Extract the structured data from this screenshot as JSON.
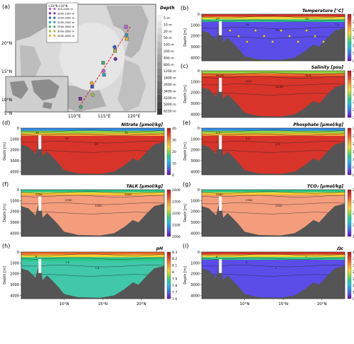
{
  "figure": {
    "panel_letters": [
      "(a)",
      "(b)",
      "(c)",
      "(d)",
      "(e)",
      "(f)",
      "(g)",
      "(h)",
      "(i)"
    ]
  },
  "colors": {
    "background": "#ffffff",
    "seafloor": "#555555",
    "station_line": "#e02020",
    "colorbar_stops": [
      "#6a0dad",
      "#5a4de8",
      "#2f8ce8",
      "#24c0d8",
      "#2cc98a",
      "#8fd640",
      "#f2d234",
      "#f7a531",
      "#f06a2a",
      "#d8342a",
      "#b01a1a"
    ]
  },
  "map_panel": {
    "legend_title_left": "<10°N",
    "legend_title_right": ">10°N",
    "legend_entries": [
      "100-1000 m",
      "1000-1500 m",
      "1500-2000 m",
      "2000-2500 m",
      "2500-3000 m",
      "3000-3500 m",
      "3500-4000 m"
    ],
    "depth_scale_title": "Depth",
    "depth_scale_labels": [
      "5 m",
      "10 m",
      "20 m",
      "50 m",
      "100 m",
      "200 m",
      "400 m",
      "800 m",
      "1200 m",
      "1800 m",
      "2600 m",
      "3400 m",
      "4200 m",
      "5000 m",
      "6250 m"
    ],
    "lat_labels": [
      "20°N",
      "15°N",
      "10°N",
      "5°N"
    ],
    "lon_labels": [
      "110°E",
      "115°E",
      "120°E"
    ],
    "legend_colors": [
      "#c060d0",
      "#7030a0",
      "#3060c0",
      "#30a0c0",
      "#40b070",
      "#a0c040",
      "#e0b030"
    ]
  },
  "chart_data": [
    {
      "panel": "b",
      "type": "heatmap",
      "title": "Temperature [°C]",
      "ylabel": "Depth [m]",
      "yticks": [
        "0",
        "1000",
        "2000",
        "3000",
        "4000"
      ],
      "xticks": [],
      "colorbar_ticks": [
        "30",
        "25",
        "20",
        "15",
        "10",
        "5",
        "0"
      ],
      "colorbar_range": [
        0,
        30
      ],
      "contour_labels": [
        "27",
        "26",
        "20",
        "10",
        "7.5",
        "5",
        "2.5"
      ]
    },
    {
      "panel": "c",
      "type": "heatmap",
      "title": "Salinity [psu]",
      "ylabel": "Depth [m]",
      "yticks": [
        "0",
        "1000",
        "2000",
        "3000",
        "4000"
      ],
      "xticks": [],
      "colorbar_ticks": [
        "34.75",
        "34.25",
        "33.75",
        "33.25",
        "32.75",
        "32.25",
        "31.75"
      ],
      "colorbar_range": [
        31.75,
        34.75
      ],
      "contour_labels": [
        "34.45",
        "34.5",
        "34.55",
        "34.6"
      ]
    },
    {
      "panel": "d",
      "type": "heatmap",
      "title": "Nitrate [μmol/kg]",
      "ylabel": "Depth [m]",
      "yticks": [
        "0",
        "1000",
        "2000",
        "3000",
        "4000"
      ],
      "xticks": [],
      "colorbar_ticks": [
        "40",
        "30",
        "20",
        "10",
        "0"
      ],
      "colorbar_range": [
        0,
        40
      ],
      "contour_labels": [
        "35",
        "36",
        "35",
        "34"
      ]
    },
    {
      "panel": "e",
      "type": "heatmap",
      "title": "Phosphate [μmol/kg]",
      "ylabel": "Depth [m]",
      "yticks": [
        "0",
        "1000",
        "2000",
        "3000",
        "4000"
      ],
      "xticks": [],
      "colorbar_ticks": [
        "3",
        "2.5",
        "2",
        "1.5",
        "1",
        "0.5",
        "0"
      ],
      "colorbar_range": [
        0,
        3
      ],
      "contour_labels": [
        "2.5",
        "2.4",
        "2.3"
      ]
    },
    {
      "panel": "f",
      "type": "heatmap",
      "title": "TALK [μmol/kg]",
      "ylabel": "Depth [m]",
      "yticks": [
        "0",
        "1000",
        "2000",
        "3000",
        "4000"
      ],
      "xticks": [],
      "colorbar_ticks": [
        "2400",
        "2300",
        "2200",
        "2100",
        "2000"
      ],
      "colorbar_range": [
        2000,
        2400
      ],
      "contour_labels": [
        "2250",
        "2300",
        "2350",
        "2400"
      ]
    },
    {
      "panel": "g",
      "type": "heatmap",
      "title": "TCO₂ [μmol/kg]",
      "ylabel": "Depth [m]",
      "yticks": [
        "0",
        "1000",
        "2000",
        "3000",
        "4000"
      ],
      "xticks": [],
      "colorbar_ticks": [
        "2300",
        "2200",
        "2100",
        "2000",
        "1900"
      ],
      "colorbar_range": [
        1900,
        2300
      ],
      "contour_labels": [
        "2200",
        "2300",
        "2320"
      ]
    },
    {
      "panel": "h",
      "type": "heatmap",
      "title": "pH",
      "ylabel": "Depth [m]",
      "yticks": [
        "0",
        "1000",
        "2000",
        "3000",
        "4000"
      ],
      "xticks": [
        "10°N",
        "15°N",
        "20°N"
      ],
      "colorbar_ticks": [
        "8.3",
        "8.2",
        "8.1",
        "8",
        "7.9",
        "7.8",
        "7.7",
        "7.6"
      ],
      "colorbar_range": [
        7.6,
        8.3
      ],
      "contour_labels": [
        "8",
        "7.9",
        "7.8"
      ]
    },
    {
      "panel": "i",
      "type": "heatmap",
      "title": "Ωc",
      "ylabel": "Depth [m]",
      "yticks": [
        "0",
        "1000",
        "2000",
        "3000",
        "4000"
      ],
      "xticks": [
        "10°N",
        "15°N",
        "20°N"
      ],
      "colorbar_ticks": [
        "4",
        "3.5",
        "3",
        "2.5",
        "2",
        "1.5",
        "1",
        "0.5"
      ],
      "colorbar_range": [
        0.5,
        4
      ],
      "contour_labels": [
        "4",
        "3",
        "2",
        "1"
      ]
    }
  ]
}
